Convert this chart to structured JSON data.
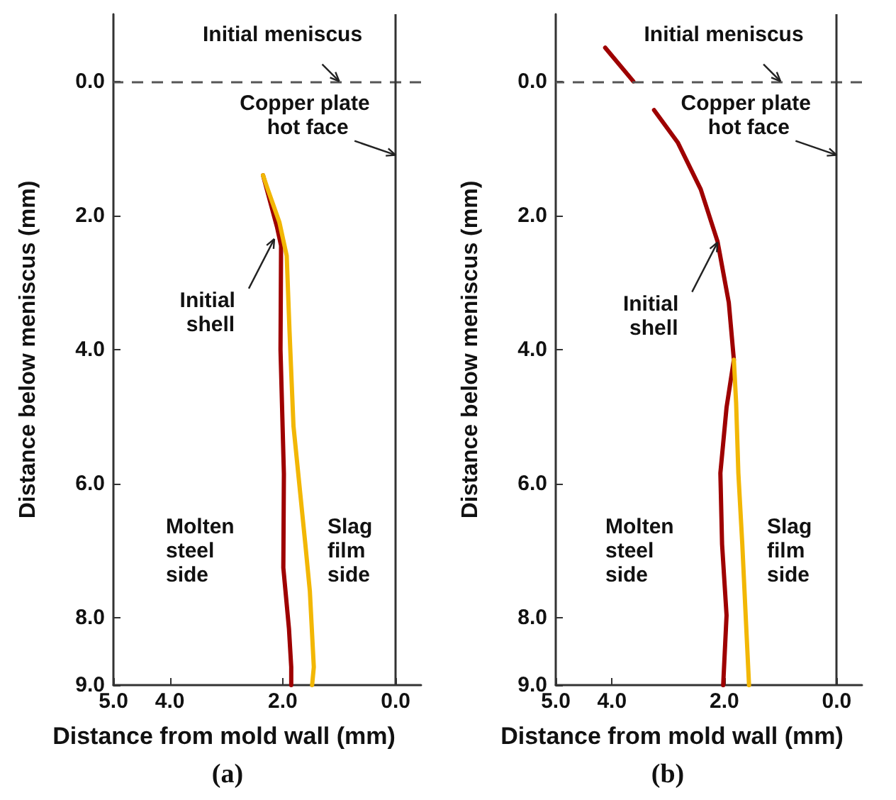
{
  "chart_data": [
    {
      "type": "line",
      "title": "(a)",
      "xlabel": "Distance from mold wall (mm)",
      "ylabel": "Distance below meniscus (mm)",
      "xlim": [
        5.0,
        -0.45
      ],
      "ylim": [
        9.0,
        -1.0
      ],
      "xticks": [
        {
          "value": 5,
          "label": "5.0"
        },
        {
          "value": 4,
          "label": "4.0"
        },
        {
          "value": 2,
          "label": "2.0"
        },
        {
          "value": 0,
          "label": "0.0"
        }
      ],
      "yticks": [
        {
          "value": 0,
          "label": "0.0"
        },
        {
          "value": 2,
          "label": "2.0"
        },
        {
          "value": 4,
          "label": "4.0"
        },
        {
          "value": 6,
          "label": "6.0"
        },
        {
          "value": 8,
          "label": "8.0"
        },
        {
          "value": 9,
          "label": "9.0"
        }
      ],
      "marker": "none",
      "series": [
        {
          "color": "#9e0000",
          "x": [
            2.35,
            2.1,
            2.03,
            2.04,
            1.98,
            1.99,
            1.89,
            1.85,
            1.85
          ],
          "values": [
            1.4,
            2.18,
            2.45,
            4.0,
            5.85,
            7.25,
            8.16,
            8.73,
            9.0
          ]
        },
        {
          "color": "#f2b705",
          "x": [
            2.35,
            2.27,
            2.06,
            1.93,
            1.88,
            1.81,
            1.6,
            1.52,
            1.45,
            1.48
          ],
          "values": [
            1.4,
            1.6,
            2.1,
            2.6,
            3.73,
            5.14,
            6.9,
            7.6,
            8.73,
            9.0
          ]
        }
      ],
      "ref_lines": [
        {
          "axis": "y",
          "value": 0,
          "color": "#555555",
          "line_style": "dashed"
        },
        {
          "axis": "x",
          "value": 0,
          "color": "#333333",
          "line_style": "solid"
        }
      ],
      "annotations": [
        {
          "text": "Initial meniscus",
          "x": 1.0,
          "y": 0.0
        },
        {
          "text": "Copper plate hot face",
          "x": 0.0,
          "y": 1.1
        },
        {
          "text": "Initial shell",
          "x": 2.15,
          "y": 2.35
        },
        "Molten steel side",
        "Slag film side"
      ]
    },
    {
      "type": "line",
      "title": "(b)",
      "xlabel": "Distance from mold wall (mm)",
      "ylabel": "Distance below meniscus (mm)",
      "xlim": [
        5.0,
        -0.45
      ],
      "ylim": [
        9.0,
        -1.0
      ],
      "xticks": [
        {
          "value": 5,
          "label": "5.0"
        },
        {
          "value": 4,
          "label": "4.0"
        },
        {
          "value": 2,
          "label": "2.0"
        },
        {
          "value": 0,
          "label": "0.0"
        }
      ],
      "yticks": [
        {
          "value": 0,
          "label": "0.0"
        },
        {
          "value": 2,
          "label": "2.0"
        },
        {
          "value": 4,
          "label": "4.0"
        },
        {
          "value": 6,
          "label": "6.0"
        },
        {
          "value": 8,
          "label": "8.0"
        },
        {
          "value": 9,
          "label": "9.0"
        }
      ],
      "marker": "none",
      "series": [
        {
          "color": "#9e0000",
          "x": [
            4.12,
            3.62,
            3.4,
            3.25,
            2.83,
            2.42,
            2.12,
            1.92,
            1.83,
            1.96,
            2.07,
            2.04,
            1.96,
            2.02
          ],
          "values": [
            -0.5,
            0.0,
            null,
            0.43,
            0.91,
            1.61,
            2.39,
            3.3,
            4.15,
            4.86,
            5.84,
            6.9,
            7.96,
            9.0
          ]
        },
        {
          "color": "#f2b705",
          "x": [
            1.83,
            1.79,
            1.75,
            1.68,
            1.62,
            1.56
          ],
          "values": [
            4.15,
            4.79,
            5.84,
            6.9,
            7.96,
            9.0
          ]
        }
      ],
      "ref_lines": [
        {
          "axis": "y",
          "value": 0,
          "color": "#555555",
          "line_style": "dashed"
        },
        {
          "axis": "x",
          "value": 0,
          "color": "#333333",
          "line_style": "solid"
        }
      ],
      "annotations": [
        {
          "text": "Initial meniscus",
          "x": 1.0,
          "y": 0.0
        },
        {
          "text": "Copper plate hot face",
          "x": 0.0,
          "y": 1.1
        },
        {
          "text": "Initial shell",
          "x": 2.12,
          "y": 2.4
        },
        "Molten steel side",
        "Slag film side"
      ]
    }
  ]
}
